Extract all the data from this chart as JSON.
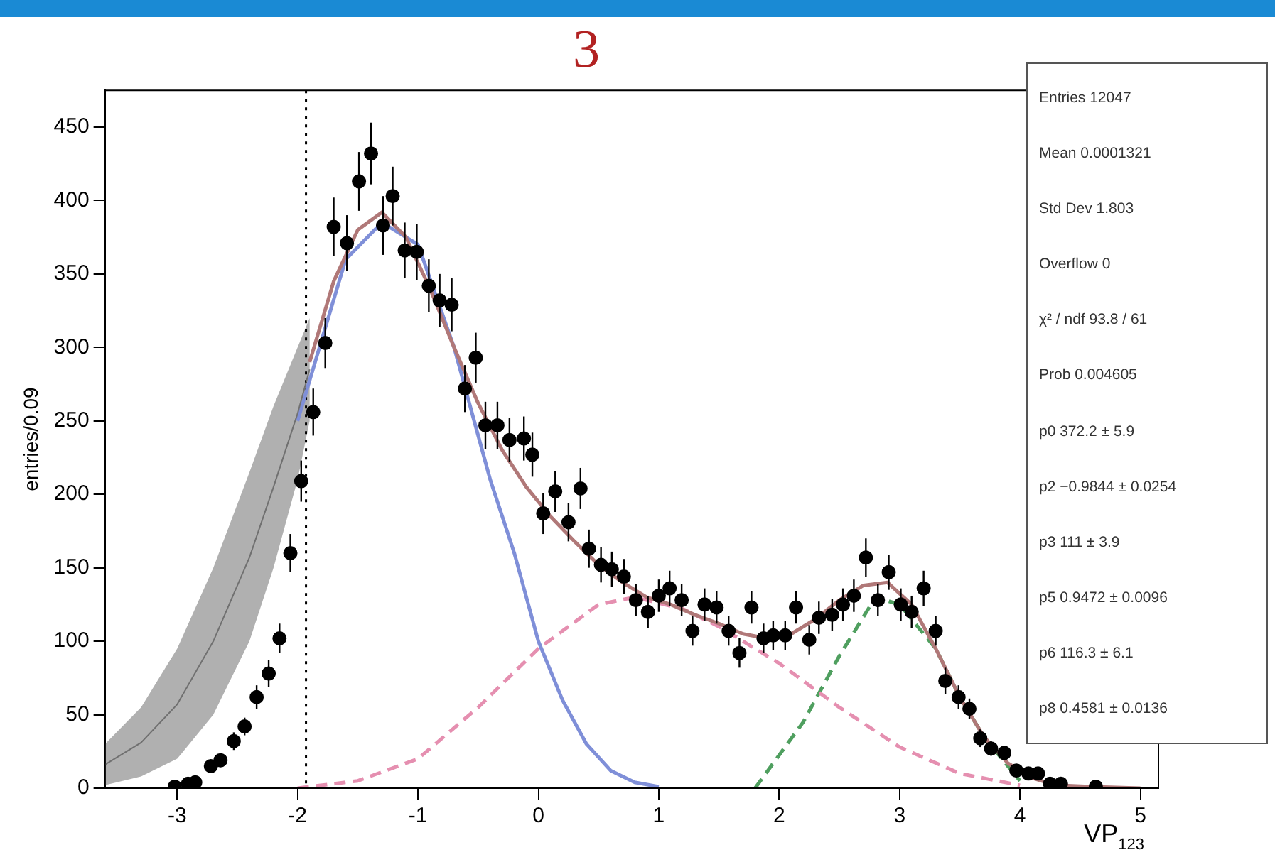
{
  "chart_data": {
    "type": "scatter",
    "title": "3",
    "xlabel": "VP$_{123}$",
    "ylabel": "entries/0.09",
    "xlim": [
      -3.6,
      5.15
    ],
    "ylim": [
      0,
      475
    ],
    "xticks": [
      -3,
      -2,
      -1,
      0,
      1,
      2,
      3,
      4,
      5
    ],
    "yticks": [
      0,
      50,
      100,
      150,
      200,
      250,
      300,
      350,
      400,
      450
    ],
    "grid": false,
    "legend": false,
    "marker": "circle",
    "ref_lines": [
      {
        "axis": "x",
        "value": -1.93,
        "color": "#000000",
        "line_style": "dotted"
      }
    ],
    "annotations": [
      "Entries 12047",
      "Mean 0.0001321",
      "Std Dev 1.803",
      "Overflow 0",
      "χ² / ndf 93.8 / 61",
      "Prob 0.004605",
      "p0 372.2 ± 5.9",
      "p2 −0.9844 ± 0.0254",
      "p3 111 ± 3.9",
      "p5 0.9472 ± 0.0096",
      "p6 116.3 ± 6.1",
      "p8 0.4581 ± 0.0136"
    ],
    "series": [
      {
        "type": "line",
        "color": "#707070",
        "marker": "none",
        "x": [
          -3.6,
          -3.3,
          -3.0,
          -2.7,
          -2.4,
          -2.2,
          -2.0,
          -1.9
        ],
        "values": [
          16,
          31,
          57,
          100,
          157,
          205,
          255,
          285
        ],
        "lower": [
          2,
          8,
          20,
          50,
          100,
          150,
          210,
          250
        ],
        "upper": [
          30,
          55,
          95,
          150,
          215,
          260,
          300,
          320
        ]
      },
      {
        "type": "line",
        "color": "#b07878",
        "marker": "none",
        "x": [
          -1.9,
          -1.7,
          -1.5,
          -1.3,
          -1.1,
          -0.9,
          -0.7,
          -0.5,
          -0.3,
          -0.1,
          0.1,
          0.3,
          0.5,
          0.7,
          0.9,
          1.1,
          1.3,
          1.5,
          1.7,
          1.9,
          2.1,
          2.3,
          2.5,
          2.7,
          2.9,
          3.1,
          3.3,
          3.5,
          3.7,
          3.9,
          4.1,
          4.3,
          4.6,
          5.0
        ],
        "values": [
          290,
          345,
          380,
          392,
          375,
          340,
          300,
          262,
          230,
          205,
          185,
          168,
          152,
          140,
          130,
          125,
          118,
          112,
          105,
          102,
          105,
          115,
          128,
          138,
          140,
          125,
          95,
          62,
          35,
          17,
          7,
          2,
          1,
          0
        ]
      },
      {
        "type": "line",
        "color": "#7f8fd8",
        "marker": "none",
        "x": [
          -2.0,
          -1.6,
          -1.3,
          -1.0,
          -0.7,
          -0.4,
          -0.2,
          0,
          0.2,
          0.4,
          0.6,
          0.8,
          1.0
        ],
        "values": [
          250,
          360,
          385,
          370,
          300,
          210,
          160,
          100,
          60,
          30,
          12,
          4,
          1
        ]
      },
      {
        "type": "line",
        "color": "#e58fb0",
        "marker": "none",
        "line_style": "dashed",
        "x": [
          -2.0,
          -1.5,
          -1.0,
          -0.5,
          0,
          0.5,
          0.8,
          1.2,
          1.5,
          2.0,
          2.5,
          3.0,
          3.5,
          4.0
        ],
        "values": [
          0,
          5,
          20,
          55,
          95,
          125,
          130,
          122,
          110,
          85,
          55,
          28,
          10,
          2
        ]
      },
      {
        "type": "line",
        "color": "#4f9f5f",
        "marker": "none",
        "line_style": "dashed",
        "x": [
          1.8,
          2.2,
          2.5,
          2.8,
          3.0,
          3.3,
          3.5,
          3.7,
          4.0
        ],
        "values": [
          0,
          45,
          90,
          130,
          125,
          95,
          62,
          35,
          5
        ]
      },
      {
        "color": "#000000",
        "x": [
          -3.02,
          -2.91,
          -2.85,
          -2.72,
          -2.64,
          -2.53,
          -2.44,
          -2.34,
          -2.24,
          -2.15,
          -2.06,
          -1.97,
          -1.87,
          -1.77,
          -1.7,
          -1.59,
          -1.49,
          -1.39,
          -1.29,
          -1.21,
          -1.11,
          -1.01,
          -0.91,
          -0.82,
          -0.72,
          -0.61,
          -0.52,
          -0.44,
          -0.34,
          -0.24,
          -0.12,
          -0.05,
          0.04,
          0.14,
          0.25,
          0.35,
          0.42,
          0.52,
          0.61,
          0.71,
          0.81,
          0.91,
          1.0,
          1.09,
          1.19,
          1.28,
          1.38,
          1.48,
          1.58,
          1.67,
          1.77,
          1.87,
          1.95,
          2.05,
          2.14,
          2.25,
          2.33,
          2.44,
          2.53,
          2.62,
          2.72,
          2.82,
          2.91,
          3.01,
          3.1,
          3.2,
          3.3,
          3.38,
          3.49,
          3.58,
          3.67,
          3.76,
          3.87,
          3.97,
          4.07,
          4.15,
          4.25,
          4.34,
          4.63
        ],
        "values": [
          1,
          3,
          4,
          15,
          19,
          32,
          42,
          62,
          78,
          102,
          160,
          209,
          256,
          303,
          382,
          371,
          413,
          432,
          383,
          403,
          366,
          365,
          342,
          332,
          329,
          272,
          293,
          247,
          247,
          237,
          238,
          227,
          187,
          202,
          181,
          204,
          163,
          152,
          149,
          144,
          128,
          120,
          131,
          136,
          128,
          107,
          125,
          123,
          107,
          92,
          123,
          102,
          104,
          104,
          123,
          101,
          116,
          118,
          125,
          131,
          157,
          128,
          147,
          125,
          120,
          136,
          107,
          73,
          62,
          54,
          34,
          27,
          24,
          12,
          10,
          10,
          3,
          3,
          1
        ],
        "errors": [
          1,
          2,
          2,
          4,
          4,
          6,
          6,
          8,
          9,
          10,
          13,
          14,
          16,
          17,
          20,
          19,
          20,
          21,
          20,
          20,
          19,
          19,
          18,
          18,
          18,
          16,
          17,
          16,
          16,
          15,
          15,
          15,
          14,
          14,
          13,
          14,
          13,
          12,
          12,
          12,
          11,
          11,
          11,
          12,
          11,
          10,
          11,
          11,
          10,
          10,
          11,
          10,
          10,
          10,
          11,
          10,
          11,
          11,
          11,
          11,
          13,
          11,
          12,
          11,
          11,
          12,
          10,
          9,
          8,
          7,
          6,
          5,
          5,
          3,
          3,
          3,
          2,
          2,
          1
        ]
      }
    ]
  }
}
